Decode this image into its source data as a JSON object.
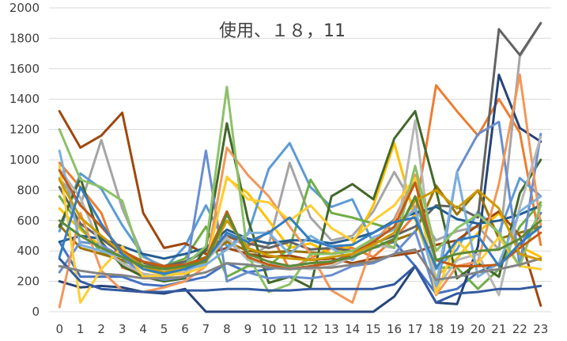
{
  "chart_data": {
    "type": "line",
    "title": "使用、１８，11",
    "xlabel": "",
    "ylabel": "",
    "categories": [
      "0",
      "1",
      "2",
      "3",
      "4",
      "5",
      "6",
      "7",
      "8",
      "9",
      "10",
      "11",
      "12",
      "13",
      "14",
      "15",
      "16",
      "17",
      "18",
      "19",
      "20",
      "21",
      "22",
      "23"
    ],
    "ylim": [
      0,
      2000
    ],
    "yticks": [
      0,
      200,
      400,
      600,
      800,
      1000,
      1200,
      1400,
      1600,
      1800,
      2000
    ],
    "grid": "horizontal",
    "legend": "none",
    "colors": [
      "#4472C4",
      "#ED7D31",
      "#A5A5A5",
      "#FFC000",
      "#5B9BD5",
      "#70AD47",
      "#264478",
      "#9E480E",
      "#636363",
      "#997300",
      "#255E91",
      "#43682B",
      "#698ED0",
      "#F1975A",
      "#B7B7B7",
      "#FFCD33",
      "#7CAFDD",
      "#8CC168",
      "#335AA1",
      "#C55A11",
      "#848484",
      "#CC9A00",
      "#327DC2",
      "#5A8A39"
    ],
    "series": [
      {
        "values": [
          460,
          230,
          230,
          230,
          180,
          170,
          200,
          230,
          320,
          260,
          280,
          300,
          320,
          330,
          380,
          420,
          460,
          300,
          120,
          150,
          260,
          320,
          420,
          650
        ]
      },
      {
        "values": [
          980,
          820,
          650,
          290,
          250,
          230,
          260,
          330,
          500,
          430,
          530,
          280,
          350,
          420,
          420,
          360,
          480,
          640,
          1490,
          1320,
          1160,
          1400,
          1180,
          440
        ]
      },
      {
        "values": [
          880,
          700,
          1130,
          680,
          360,
          300,
          320,
          400,
          470,
          350,
          440,
          980,
          620,
          470,
          500,
          660,
          920,
          680,
          470,
          530,
          560,
          410,
          1680,
          1900
        ]
      },
      {
        "values": [
          680,
          540,
          430,
          360,
          280,
          240,
          280,
          330,
          880,
          780,
          600,
          420,
          450,
          380,
          440,
          700,
          1110,
          610,
          230,
          350,
          520,
          650,
          430,
          360
        ]
      },
      {
        "values": [
          530,
          910,
          810,
          570,
          370,
          280,
          430,
          700,
          430,
          510,
          940,
          1110,
          820,
          690,
          740,
          450,
          610,
          890,
          280,
          410,
          660,
          520,
          880,
          760
        ]
      },
      {
        "values": [
          760,
          560,
          390,
          330,
          300,
          300,
          350,
          560,
          230,
          300,
          300,
          420,
          870,
          650,
          620,
          580,
          540,
          900,
          290,
          290,
          150,
          280,
          560,
          720
        ]
      },
      {
        "values": [
          200,
          160,
          170,
          160,
          130,
          120,
          150,
          0,
          0,
          0,
          0,
          0,
          0,
          0,
          0,
          0,
          100,
          300,
          60,
          50,
          430,
          1560,
          1210,
          1120
        ]
      },
      {
        "values": [
          1320,
          1080,
          1160,
          1310,
          650,
          420,
          450,
          380,
          420,
          380,
          360,
          370,
          340,
          350,
          320,
          350,
          370,
          390,
          440,
          470,
          570,
          660,
          500,
          40
        ]
      },
      {
        "values": [
          820,
          580,
          480,
          380,
          320,
          300,
          330,
          400,
          500,
          450,
          420,
          460,
          410,
          420,
          400,
          450,
          500,
          560,
          700,
          690,
          620,
          1860,
          1690,
          1900
        ]
      },
      {
        "values": [
          570,
          420,
          380,
          340,
          300,
          290,
          310,
          360,
          460,
          400,
          390,
          400,
          390,
          380,
          400,
          420,
          470,
          520,
          830,
          640,
          800,
          480,
          520,
          560
        ]
      },
      {
        "values": [
          460,
          500,
          480,
          430,
          380,
          350,
          380,
          420,
          540,
          480,
          450,
          470,
          470,
          450,
          480,
          520,
          600,
          650,
          690,
          610,
          580,
          600,
          640,
          700
        ]
      },
      {
        "values": [
          560,
          880,
          460,
          300,
          230,
          200,
          220,
          420,
          1240,
          610,
          190,
          230,
          160,
          760,
          840,
          740,
          1140,
          1320,
          800,
          220,
          320,
          230,
          780,
          1000
        ]
      },
      {
        "values": [
          260,
          460,
          440,
          360,
          240,
          210,
          230,
          1060,
          200,
          260,
          220,
          230,
          220,
          240,
          300,
          320,
          380,
          530,
          110,
          920,
          1170,
          1250,
          300,
          1170
        ]
      },
      {
        "values": [
          30,
          650,
          270,
          140,
          130,
          160,
          200,
          300,
          1080,
          900,
          760,
          560,
          380,
          140,
          60,
          460,
          600,
          900,
          110,
          300,
          330,
          840,
          1560,
          570
        ]
      },
      {
        "values": [
          940,
          750,
          420,
          320,
          250,
          230,
          260,
          330,
          490,
          340,
          310,
          300,
          280,
          300,
          360,
          440,
          420,
          1260,
          150,
          340,
          380,
          110,
          690,
          1150
        ]
      },
      {
        "values": [
          960,
          60,
          280,
          430,
          230,
          240,
          250,
          300,
          890,
          740,
          720,
          600,
          700,
          550,
          470,
          600,
          700,
          880,
          120,
          470,
          320,
          490,
          300,
          280
        ]
      },
      {
        "values": [
          1060,
          440,
          400,
          360,
          300,
          280,
          280,
          310,
          410,
          520,
          520,
          380,
          500,
          420,
          340,
          490,
          540,
          680,
          170,
          920,
          230,
          320,
          660,
          760
        ]
      },
      {
        "values": [
          1200,
          870,
          820,
          730,
          300,
          240,
          310,
          430,
          1480,
          370,
          130,
          180,
          380,
          380,
          400,
          480,
          420,
          960,
          400,
          550,
          640,
          520,
          300,
          700
        ]
      },
      {
        "values": [
          350,
          200,
          150,
          140,
          130,
          130,
          140,
          140,
          150,
          150,
          140,
          140,
          150,
          150,
          150,
          150,
          180,
          300,
          60,
          120,
          130,
          150,
          150,
          170
        ]
      },
      {
        "values": [
          930,
          700,
          560,
          400,
          330,
          300,
          310,
          350,
          660,
          360,
          310,
          280,
          300,
          320,
          380,
          460,
          560,
          850,
          340,
          300,
          300,
          310,
          420,
          520
        ]
      },
      {
        "values": [
          300,
          270,
          250,
          240,
          220,
          220,
          230,
          260,
          320,
          310,
          290,
          280,
          290,
          290,
          310,
          330,
          380,
          410,
          210,
          230,
          260,
          280,
          310,
          350
        ]
      },
      {
        "values": [
          870,
          620,
          500,
          390,
          300,
          260,
          290,
          330,
          600,
          420,
          370,
          350,
          340,
          360,
          380,
          440,
          520,
          730,
          800,
          680,
          800,
          680,
          380,
          340
        ]
      },
      {
        "values": [
          360,
          820,
          580,
          380,
          280,
          250,
          280,
          340,
          520,
          460,
          520,
          620,
          470,
          430,
          440,
          520,
          590,
          620,
          290,
          470,
          500,
          300,
          450,
          560
        ]
      },
      {
        "values": [
          600,
          500,
          420,
          360,
          300,
          280,
          300,
          330,
          640,
          380,
          330,
          300,
          320,
          330,
          360,
          420,
          480,
          760,
          340,
          380,
          400,
          410,
          480,
          600
        ]
      }
    ]
  }
}
